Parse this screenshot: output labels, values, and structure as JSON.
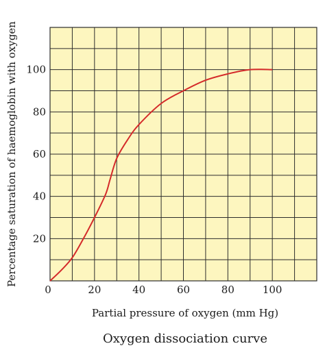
{
  "chart_data": {
    "type": "line",
    "title": "Oxygen dissociation curve",
    "xlabel": "Partial pressure of oxygen (mm Hg)",
    "ylabel": "Percentage saturation of haemoglobin with oxygen",
    "xlim": [
      0,
      120
    ],
    "ylim": [
      0,
      120
    ],
    "grid": true,
    "x_ticks": [
      0,
      20,
      40,
      60,
      80,
      100
    ],
    "y_ticks": [
      20,
      40,
      60,
      80,
      100
    ],
    "x_tick_labels": [
      "0",
      "20",
      "40",
      "60",
      "80",
      "100"
    ],
    "y_tick_labels": [
      "20",
      "40",
      "60",
      "80",
      "100"
    ],
    "series": [
      {
        "x": [
          0,
          5,
          10,
          15,
          20,
          25,
          27,
          30,
          35,
          40,
          50,
          60,
          70,
          80,
          90,
          100
        ],
        "y": [
          0,
          5,
          11,
          20,
          30,
          41,
          48,
          58,
          67,
          74,
          84,
          90,
          95,
          98,
          100,
          100
        ]
      }
    ],
    "colors": {
      "background": "#fdf6bf",
      "grid": "#2b2b2b",
      "curve": "#d42a2a"
    }
  }
}
